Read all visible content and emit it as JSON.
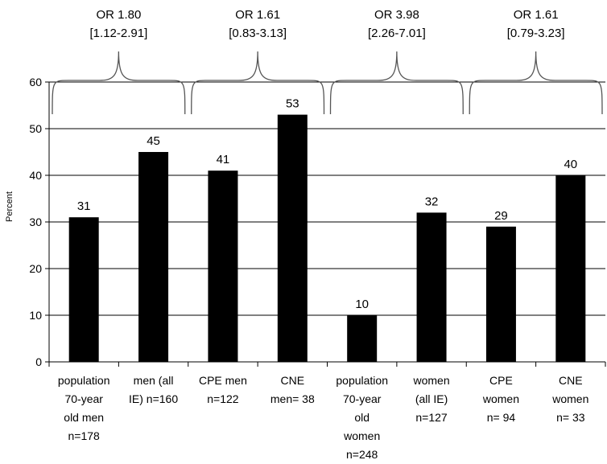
{
  "chart_data": {
    "type": "bar",
    "ylabel": "Percent",
    "ylim": [
      0,
      60
    ],
    "yticks": [
      0,
      10,
      20,
      30,
      40,
      50,
      60
    ],
    "grid": true,
    "categories": [
      "population\n70-year\nold men\nn=178",
      "men (all\nIE) n=160",
      "CPE men\nn=122",
      "CNE\nmen= 38",
      "population\n70-year\nold\nwomen\nn=248",
      "women\n(all IE)\nn=127",
      "CPE\nwomen\nn= 94",
      "CNE\nwomen\nn= 33"
    ],
    "values": [
      31,
      45,
      41,
      53,
      10,
      32,
      29,
      40
    ],
    "bar_color": "#000000",
    "annotations": [
      {
        "label": "OR 1.80\n[1.12-2.91]",
        "spans": [
          0,
          1
        ]
      },
      {
        "label": "OR 1.61\n[0.83-3.13]",
        "spans": [
          2,
          3
        ]
      },
      {
        "label": "OR 3.98\n[2.26-7.01]",
        "spans": [
          4,
          5
        ]
      },
      {
        "label": "OR 1.61\n[0.79-3.23]",
        "spans": [
          6,
          7
        ]
      }
    ]
  }
}
